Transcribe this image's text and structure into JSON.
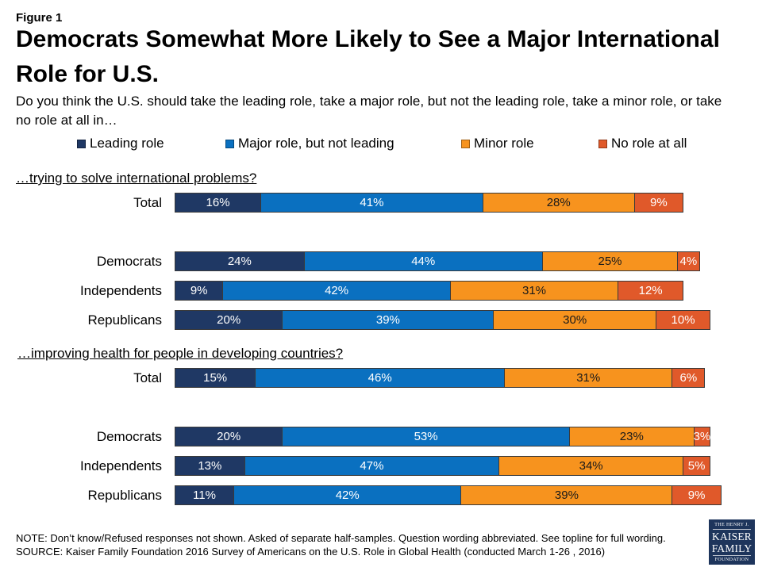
{
  "figure_label": "Figure 1",
  "title": "Democrats Somewhat More Likely to See a Major International Role for U.S.",
  "subtitle": "Do you think the U.S. should take the leading role, take a major role, but not the leading role, take a minor role, or take no role at all in…",
  "chart_data": {
    "type": "bar",
    "orientation": "horizontal",
    "stacked": true,
    "unit": "%",
    "grid": false,
    "legend_position": "top",
    "series": [
      {
        "name": "Leading role",
        "color": "#1f3864",
        "label_color": "#ffffff"
      },
      {
        "name": "Major role, but not leading",
        "color": "#0a70c0",
        "label_color": "#ffffff"
      },
      {
        "name": "Minor role",
        "color": "#f7931e",
        "label_color": "#1a1a1a"
      },
      {
        "name": "No role at all",
        "color": "#e0592a",
        "label_color": "#ffffff"
      }
    ],
    "panels": [
      {
        "title": "…trying to solve international problems?",
        "rows": [
          {
            "category": "Total",
            "values": [
              16,
              41,
              28,
              9
            ]
          },
          {
            "category": "Democrats",
            "values": [
              24,
              44,
              25,
              4
            ]
          },
          {
            "category": "Independents",
            "values": [
              9,
              42,
              31,
              12
            ]
          },
          {
            "category": "Republicans",
            "values": [
              20,
              39,
              30,
              10
            ]
          }
        ]
      },
      {
        "title": "…improving health for people in developing countries?",
        "rows": [
          {
            "category": "Total",
            "values": [
              15,
              46,
              31,
              6
            ]
          },
          {
            "category": "Democrats",
            "values": [
              20,
              53,
              23,
              3
            ]
          },
          {
            "category": "Independents",
            "values": [
              13,
              47,
              34,
              5
            ]
          },
          {
            "category": "Republicans",
            "values": [
              11,
              42,
              39,
              9
            ]
          }
        ]
      }
    ]
  },
  "notes": {
    "note": "NOTE: Don’t know/Refused responses not shown. Asked of separate half-samples. Question wording abbreviated. See topline for full wording.",
    "source": "SOURCE: Kaiser Family Foundation 2016 Survey of Americans on the U.S. Role in Global Health (conducted March 1-26 , 2016)"
  },
  "logo": {
    "line1": "THE HENRY J.",
    "line2": "KAISER",
    "line3": "FAMILY",
    "line4": "FOUNDATION",
    "color": "#1e355c"
  }
}
